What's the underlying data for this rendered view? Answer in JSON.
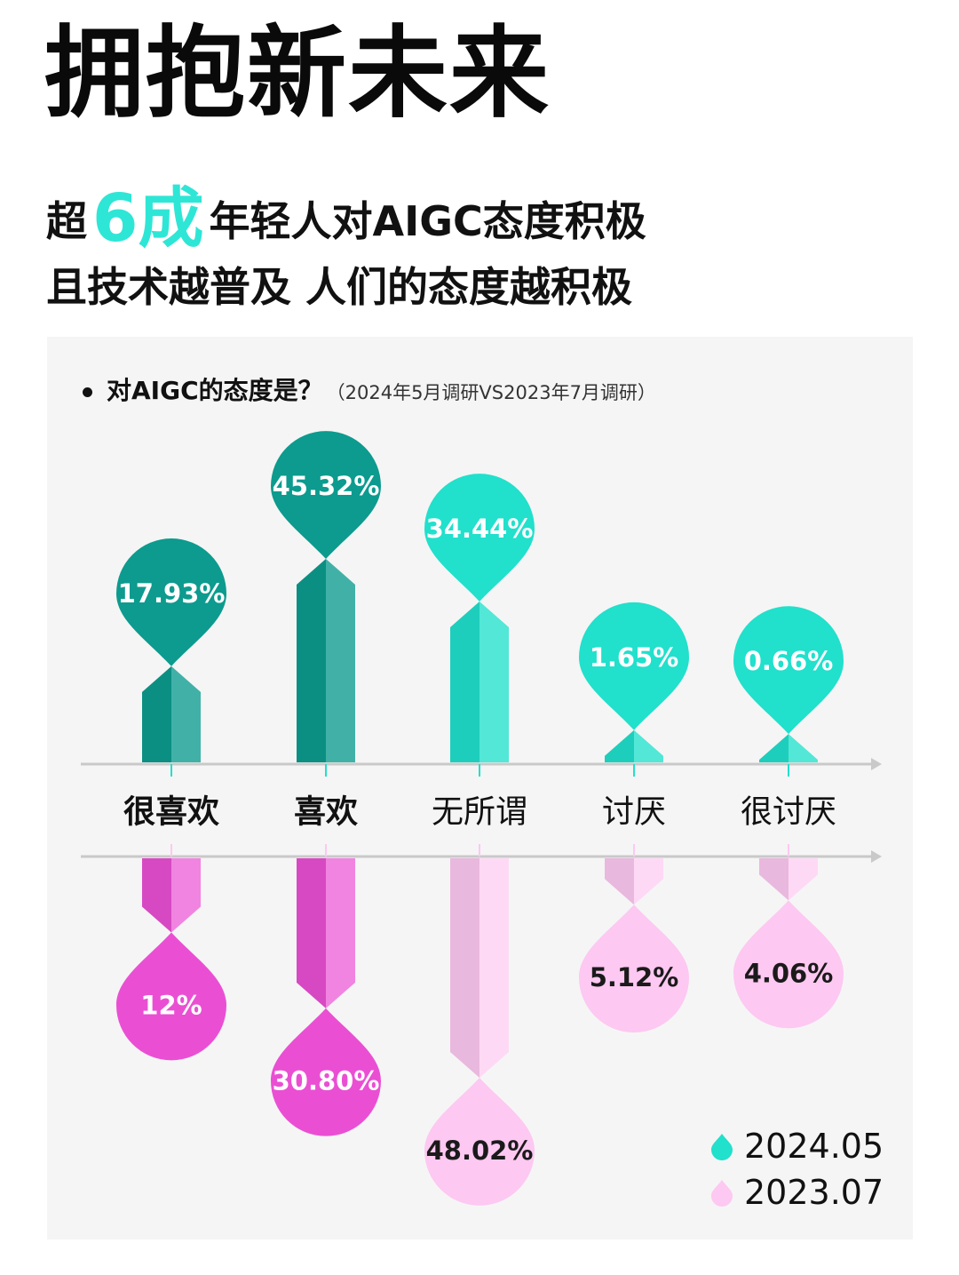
{
  "title": "拥抱新未来",
  "headline": {
    "line1_prefix": "超",
    "line1_highlight": "6成",
    "line1_suffix": "年轻人对AIGC态度积极",
    "line2": "且技术越普及 人们的态度越积极",
    "highlight_color": "#2ee6d6"
  },
  "panel": {
    "question": "对AIGC的态度是？",
    "note": "（2024年5月调研VS2023年7月调研）"
  },
  "chart_data": {
    "type": "bar",
    "categories": [
      "很喜欢",
      "喜欢",
      "无所谓",
      "讨厌",
      "很讨厌"
    ],
    "series": [
      {
        "name": "2024.05",
        "values": [
          17.93,
          45.32,
          34.44,
          1.65,
          0.66
        ],
        "labels": [
          "17.93%",
          "45.32%",
          "34.44%",
          "1.65%",
          "0.66%"
        ],
        "colors": [
          "#0c9b8e",
          "#0c9b8e",
          "#21e0cc",
          "#21e0cc",
          "#21e0cc"
        ],
        "direction": "up"
      },
      {
        "name": "2023.07",
        "values": [
          12,
          30.8,
          48.02,
          5.12,
          4.06
        ],
        "labels": [
          "12%",
          "30.80%",
          "48.02%",
          "5.12%",
          "4.06%"
        ],
        "colors": [
          "#ea4fd3",
          "#ea4fd3",
          "#fdc8f1",
          "#fdc8f1",
          "#fdc8f1"
        ],
        "direction": "down"
      }
    ],
    "category_emphasis": [
      true,
      true,
      false,
      false,
      false
    ],
    "legend": {
      "position": "bottom-right",
      "items": [
        {
          "label": "2024.05",
          "color": "#21e0cc"
        },
        {
          "label": "2023.07",
          "color": "#fdc8f1"
        }
      ]
    },
    "axis_color": "#c9c9c9",
    "grid": false
  }
}
